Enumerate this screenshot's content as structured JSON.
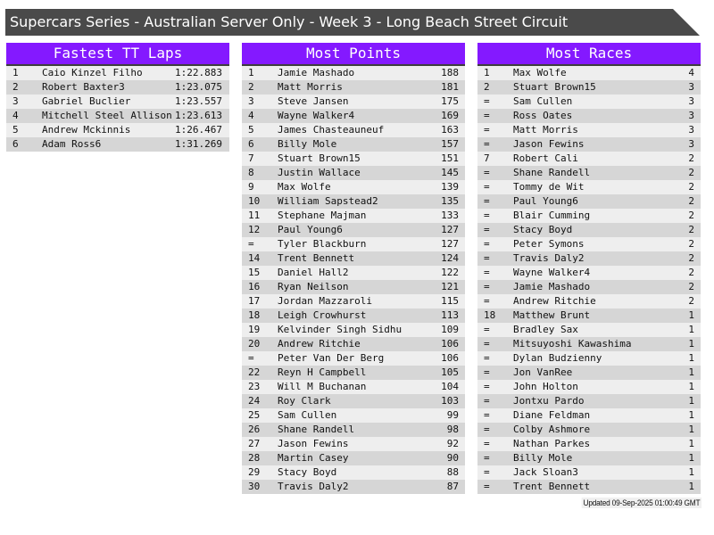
{
  "title": "Supercars Series - Australian Server Only - Week 3 - Long Beach Street Circuit",
  "colors": {
    "header_bg": "#8419ff",
    "title_bg": "#4a4a4a",
    "row_light": "#eeeeee",
    "row_dark": "#d6d6d6"
  },
  "panels": [
    {
      "title": "Fastest TT Laps",
      "rows": [
        [
          "1",
          "Caio Kinzel Filho",
          "1:22.883"
        ],
        [
          "2",
          "Robert Baxter3",
          "1:23.075"
        ],
        [
          "3",
          "Gabriel Buclier",
          "1:23.557"
        ],
        [
          "4",
          "Mitchell Steel Allison",
          "1:23.613"
        ],
        [
          "5",
          "Andrew Mckinnis",
          "1:26.467"
        ],
        [
          "6",
          "Adam Ross6",
          "1:31.269"
        ]
      ]
    },
    {
      "title": "Most Points",
      "rows": [
        [
          "1",
          "Jamie Mashado",
          "188"
        ],
        [
          "2",
          "Matt Morris",
          "181"
        ],
        [
          "3",
          "Steve Jansen",
          "175"
        ],
        [
          "4",
          "Wayne Walker4",
          "169"
        ],
        [
          "5",
          "James Chasteauneuf",
          "163"
        ],
        [
          "6",
          "Billy Mole",
          "157"
        ],
        [
          "7",
          "Stuart Brown15",
          "151"
        ],
        [
          "8",
          "Justin Wallace",
          "145"
        ],
        [
          "9",
          "Max Wolfe",
          "139"
        ],
        [
          "10",
          "William Sapstead2",
          "135"
        ],
        [
          "11",
          "Stephane Majman",
          "133"
        ],
        [
          "12",
          "Paul Young6",
          "127"
        ],
        [
          "=",
          "Tyler Blackburn",
          "127"
        ],
        [
          "14",
          "Trent Bennett",
          "124"
        ],
        [
          "15",
          "Daniel Hall2",
          "122"
        ],
        [
          "16",
          "Ryan Neilson",
          "121"
        ],
        [
          "17",
          "Jordan Mazzaroli",
          "115"
        ],
        [
          "18",
          "Leigh Crowhurst",
          "113"
        ],
        [
          "19",
          "Kelvinder Singh Sidhu",
          "109"
        ],
        [
          "20",
          "Andrew Ritchie",
          "106"
        ],
        [
          "=",
          "Peter Van Der Berg",
          "106"
        ],
        [
          "22",
          "Reyn H Campbell",
          "105"
        ],
        [
          "23",
          "Will M Buchanan",
          "104"
        ],
        [
          "24",
          "Roy Clark",
          "103"
        ],
        [
          "25",
          "Sam Cullen",
          "99"
        ],
        [
          "26",
          "Shane Randell",
          "98"
        ],
        [
          "27",
          "Jason Fewins",
          "92"
        ],
        [
          "28",
          "Martin Casey",
          "90"
        ],
        [
          "29",
          "Stacy Boyd",
          "88"
        ],
        [
          "30",
          "Travis Daly2",
          "87"
        ]
      ]
    },
    {
      "title": "Most Races",
      "rows": [
        [
          "1",
          "Max Wolfe",
          "4"
        ],
        [
          "2",
          "Stuart Brown15",
          "3"
        ],
        [
          "=",
          "Sam Cullen",
          "3"
        ],
        [
          "=",
          "Ross Oates",
          "3"
        ],
        [
          "=",
          "Matt Morris",
          "3"
        ],
        [
          "=",
          "Jason Fewins",
          "3"
        ],
        [
          "7",
          "Robert Cali",
          "2"
        ],
        [
          "=",
          "Shane Randell",
          "2"
        ],
        [
          "=",
          "Tommy de Wit",
          "2"
        ],
        [
          "=",
          "Paul Young6",
          "2"
        ],
        [
          "=",
          "Blair Cumming",
          "2"
        ],
        [
          "=",
          "Stacy Boyd",
          "2"
        ],
        [
          "=",
          "Peter Symons",
          "2"
        ],
        [
          "=",
          "Travis Daly2",
          "2"
        ],
        [
          "=",
          "Wayne Walker4",
          "2"
        ],
        [
          "=",
          "Jamie Mashado",
          "2"
        ],
        [
          "=",
          "Andrew Ritchie",
          "2"
        ],
        [
          "18",
          "Matthew Brunt",
          "1"
        ],
        [
          "=",
          "Bradley Sax",
          "1"
        ],
        [
          "=",
          "Mitsuyoshi Kawashima",
          "1"
        ],
        [
          "=",
          "Dylan Budzienny",
          "1"
        ],
        [
          "=",
          "Jon VanRee",
          "1"
        ],
        [
          "=",
          "John Holton",
          "1"
        ],
        [
          "=",
          "Jontxu Pardo",
          "1"
        ],
        [
          "=",
          "Diane Feldman",
          "1"
        ],
        [
          "=",
          "Colby Ashmore",
          "1"
        ],
        [
          "=",
          "Nathan Parkes",
          "1"
        ],
        [
          "=",
          "Billy Mole",
          "1"
        ],
        [
          "=",
          "Jack Sloan3",
          "1"
        ],
        [
          "=",
          "Trent Bennett",
          "1"
        ]
      ]
    }
  ],
  "updated": "Updated 09-Sep-2025 01:00:49 GMT"
}
